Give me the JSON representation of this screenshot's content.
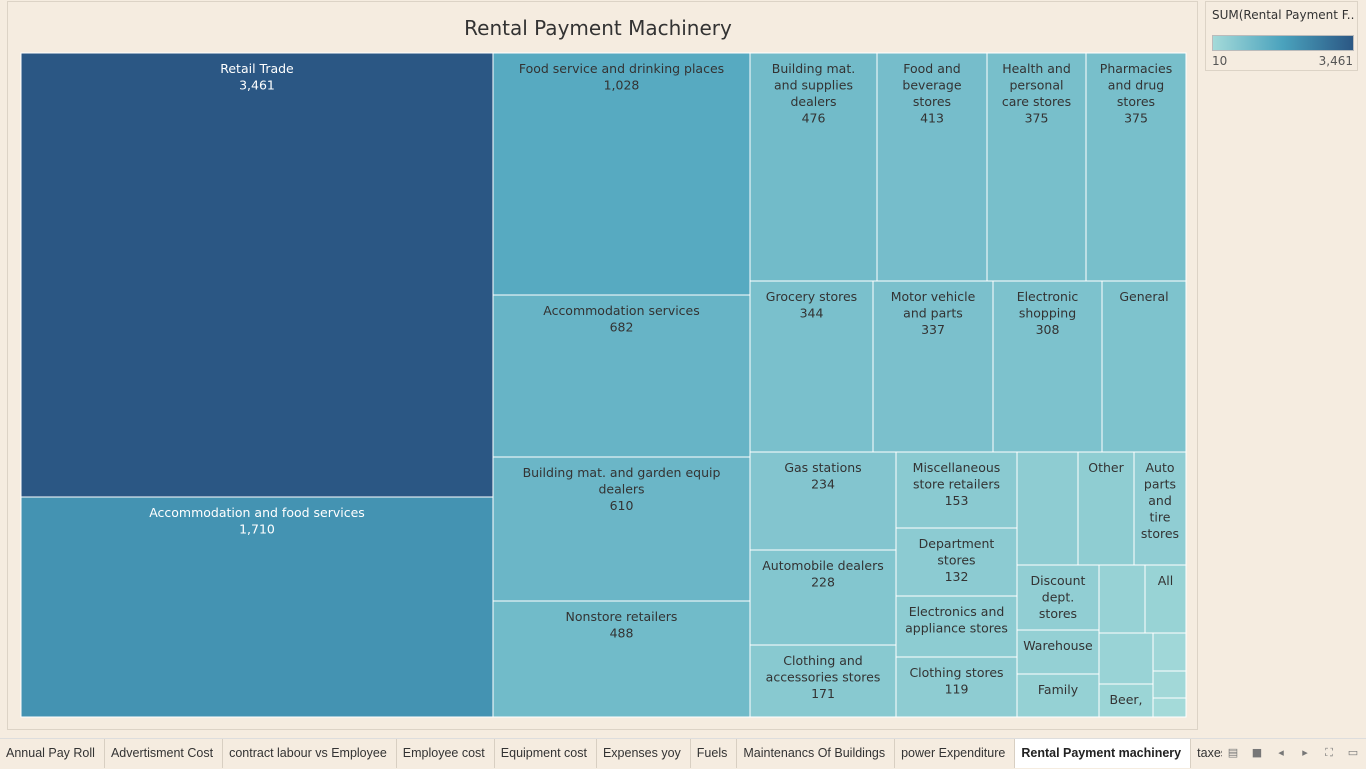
{
  "chart_data": {
    "type": "treemap",
    "title": "Rental Payment Machinery",
    "color_min": 10,
    "color_max": 3461,
    "palette": [
      "#a4dad9",
      "#4aa2bd",
      "#2b5784"
    ],
    "nodes": [
      {
        "name": "Retail Trade",
        "label": "3,461",
        "value": 3461
      },
      {
        "name": "Accommodation and food services",
        "label": "1,710",
        "value": 1710
      },
      {
        "name": "Food service and drinking places",
        "label": "1,028",
        "value": 1028
      },
      {
        "name": "Accommodation services",
        "label": "682",
        "value": 682
      },
      {
        "name": "Building mat. and garden equip dealers",
        "label": "610",
        "value": 610
      },
      {
        "name": "Nonstore retailers",
        "label": "488",
        "value": 488
      },
      {
        "name": "Building mat. and supplies dealers",
        "label": "476",
        "value": 476
      },
      {
        "name": "Food and beverage stores",
        "label": "413",
        "value": 413
      },
      {
        "name": "Health and personal care stores",
        "label": "375",
        "value": 375
      },
      {
        "name": "Pharmacies and drug stores",
        "label": "375",
        "value": 375
      },
      {
        "name": "Grocery stores",
        "label": "344",
        "value": 344
      },
      {
        "name": "Motor vehicle and parts",
        "label": "337",
        "value": 337
      },
      {
        "name": "Electronic shopping",
        "label": "308",
        "value": 308
      },
      {
        "name": "General",
        "label": "",
        "value": 290
      },
      {
        "name": "Gas stations",
        "label": "234",
        "value": 234
      },
      {
        "name": "Automobile dealers",
        "label": "228",
        "value": 228
      },
      {
        "name": "Clothing and accessories stores",
        "label": "171",
        "value": 171
      },
      {
        "name": "Miscellaneous store retailers",
        "label": "153",
        "value": 153
      },
      {
        "name": "Department stores",
        "label": "132",
        "value": 132
      },
      {
        "name": "Electronics and appliance stores",
        "label": "",
        "value": 125
      },
      {
        "name": "Clothing stores",
        "label": "119",
        "value": 119
      },
      {
        "name": "",
        "label": "",
        "value": 115
      },
      {
        "name": "Other",
        "label": "",
        "value": 110
      },
      {
        "name": "Auto parts and tire stores",
        "label": "",
        "value": 100
      },
      {
        "name": "Discount dept. stores",
        "label": "",
        "value": 90
      },
      {
        "name": "Warehouse",
        "label": "",
        "value": 70
      },
      {
        "name": "Family",
        "label": "",
        "value": 60
      },
      {
        "name": "",
        "label": "",
        "value": 50
      },
      {
        "name": "All",
        "label": "",
        "value": 45
      },
      {
        "name": "",
        "label": "",
        "value": 40
      },
      {
        "name": "Beer,",
        "label": "",
        "value": 30
      },
      {
        "name": "",
        "label": "",
        "value": 15
      },
      {
        "name": "",
        "label": "",
        "value": 12
      },
      {
        "name": "",
        "label": "",
        "value": 10
      }
    ]
  },
  "legend": {
    "title": "SUM(Rental Payment F...",
    "min_label": "10",
    "max_label": "3,461"
  },
  "tabs": [
    {
      "label": "Annual Pay Roll",
      "active": false
    },
    {
      "label": "Advertisment Cost",
      "active": false
    },
    {
      "label": "contract labour vs Employee",
      "active": false
    },
    {
      "label": "Employee cost",
      "active": false
    },
    {
      "label": "Equipment cost",
      "active": false
    },
    {
      "label": "Expenses yoy",
      "active": false
    },
    {
      "label": "Fuels",
      "active": false
    },
    {
      "label": "Maintenancs Of Buildings",
      "active": false
    },
    {
      "label": "power Expenditure",
      "active": false
    },
    {
      "label": "Rental Payment machinery",
      "active": true
    },
    {
      "label": "taxes and licenses",
      "active": false
    }
  ]
}
